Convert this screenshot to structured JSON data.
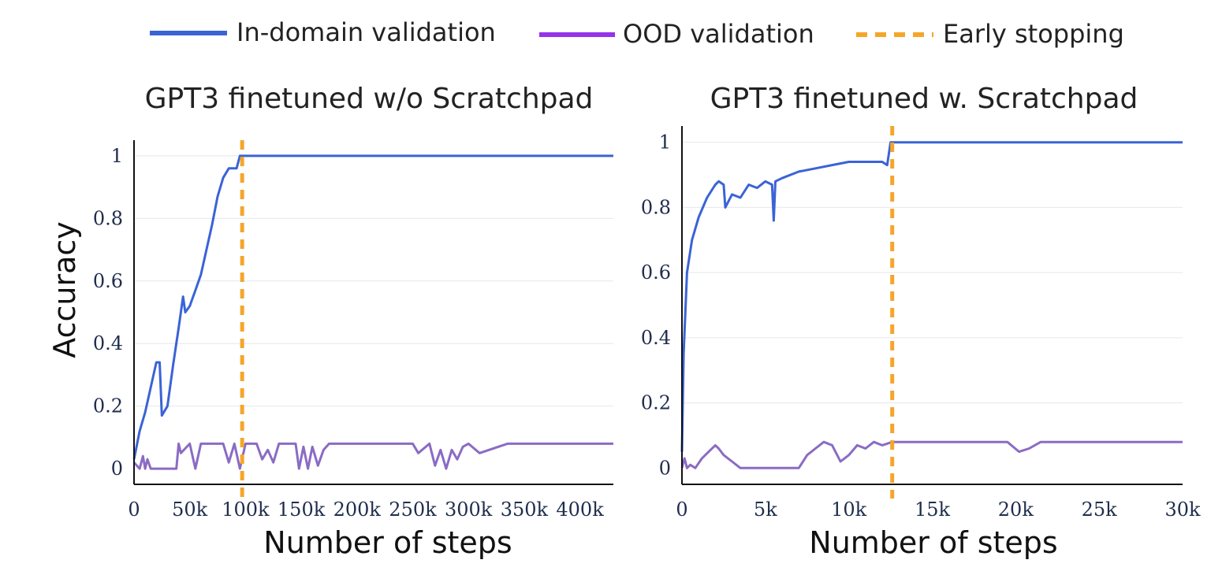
{
  "legend": [
    {
      "name": "In-domain validation",
      "color": "#3a63d6",
      "style": "solid"
    },
    {
      "name": "OOD validation",
      "color": "#9333ea",
      "style": "solid"
    },
    {
      "name": "Early stopping",
      "color": "#f4a62a",
      "style": "dashed"
    }
  ],
  "shared_ylabel": "Accuracy",
  "chart_data": [
    {
      "type": "line",
      "title": "GPT3 finetuned w/o Scratchpad",
      "xlabel": "Number of steps",
      "ylabel": "Accuracy",
      "xlim": [
        0,
        430000
      ],
      "ylim": [
        -0.05,
        1.05
      ],
      "xticks": [
        0,
        50000,
        100000,
        150000,
        200000,
        250000,
        300000,
        350000,
        400000
      ],
      "xtick_labels": [
        "0",
        "50k",
        "100k",
        "150k",
        "200k",
        "250k",
        "300k",
        "350k",
        "400k"
      ],
      "yticks": [
        0,
        0.2,
        0.4,
        0.6,
        0.8,
        1
      ],
      "ytick_labels": [
        "0",
        "0.2",
        "0.4",
        "0.6",
        "0.8",
        "1"
      ],
      "grid": true,
      "early_stopping_x": 97000,
      "series": [
        {
          "name": "In-domain validation",
          "color": "#3a63d6",
          "x": [
            0,
            5000,
            10000,
            15000,
            20000,
            23000,
            25000,
            30000,
            35000,
            40000,
            44000,
            46000,
            50000,
            55000,
            60000,
            65000,
            70000,
            75000,
            80000,
            85000,
            90000,
            92000,
            95000,
            97000,
            110000,
            200000,
            300000,
            430000
          ],
          "y": [
            0.03,
            0.12,
            0.18,
            0.26,
            0.34,
            0.34,
            0.17,
            0.2,
            0.33,
            0.45,
            0.55,
            0.5,
            0.52,
            0.57,
            0.62,
            0.7,
            0.78,
            0.87,
            0.93,
            0.96,
            0.96,
            0.96,
            1.0,
            1.0,
            1.0,
            1.0,
            1.0,
            1.0
          ]
        },
        {
          "name": "OOD validation",
          "color": "#8b6bc4",
          "x": [
            0,
            5000,
            8000,
            10000,
            12000,
            15000,
            20000,
            30000,
            38000,
            40000,
            42000,
            50000,
            55000,
            60000,
            80000,
            85000,
            90000,
            95000,
            100000,
            110000,
            115000,
            120000,
            125000,
            130000,
            145000,
            148000,
            152000,
            156000,
            160000,
            165000,
            170000,
            175000,
            250000,
            255000,
            265000,
            270000,
            275000,
            280000,
            285000,
            290000,
            295000,
            300000,
            310000,
            335000,
            430000
          ],
          "y": [
            0.02,
            0.0,
            0.04,
            0.0,
            0.03,
            0.0,
            0.0,
            0.0,
            0.0,
            0.08,
            0.05,
            0.08,
            0.0,
            0.08,
            0.08,
            0.02,
            0.08,
            0.0,
            0.08,
            0.08,
            0.03,
            0.06,
            0.02,
            0.08,
            0.08,
            0.0,
            0.07,
            0.0,
            0.07,
            0.01,
            0.06,
            0.08,
            0.08,
            0.05,
            0.08,
            0.01,
            0.06,
            0.0,
            0.06,
            0.03,
            0.07,
            0.08,
            0.05,
            0.08,
            0.08
          ]
        }
      ]
    },
    {
      "type": "line",
      "title": "GPT3 finetuned w. Scratchpad",
      "xlabel": "Number of steps",
      "ylabel": "",
      "xlim": [
        0,
        30000
      ],
      "ylim": [
        -0.05,
        1.05
      ],
      "xticks": [
        0,
        5000,
        10000,
        15000,
        20000,
        25000,
        30000
      ],
      "xtick_labels": [
        "0",
        "5k",
        "10k",
        "15k",
        "20k",
        "25k",
        "30k"
      ],
      "yticks": [
        0,
        0.2,
        0.4,
        0.6,
        0.8,
        1
      ],
      "ytick_labels": [
        "0",
        "0.2",
        "0.4",
        "0.6",
        "0.8",
        "1"
      ],
      "grid": true,
      "early_stopping_x": 12600,
      "series": [
        {
          "name": "In-domain validation",
          "color": "#3a63d6",
          "x": [
            0,
            100,
            300,
            600,
            1000,
            1500,
            2000,
            2200,
            2500,
            2600,
            3000,
            3500,
            4000,
            4500,
            5000,
            5400,
            5500,
            5600,
            6000,
            7000,
            8000,
            9000,
            10000,
            11000,
            12000,
            12300,
            12500,
            15000,
            20000,
            25000,
            30000
          ],
          "y": [
            0.05,
            0.35,
            0.6,
            0.7,
            0.77,
            0.83,
            0.87,
            0.88,
            0.87,
            0.8,
            0.84,
            0.83,
            0.87,
            0.86,
            0.88,
            0.87,
            0.76,
            0.88,
            0.89,
            0.91,
            0.92,
            0.93,
            0.94,
            0.94,
            0.94,
            0.93,
            1.0,
            1.0,
            1.0,
            1.0,
            1.0
          ]
        },
        {
          "name": "OOD validation",
          "color": "#8b6bc4",
          "x": [
            0,
            150,
            300,
            500,
            800,
            1200,
            1600,
            2000,
            2200,
            2500,
            3000,
            3500,
            5000,
            7000,
            7500,
            8000,
            8500,
            9000,
            9500,
            10000,
            10500,
            11000,
            11500,
            12000,
            12600,
            14000,
            17000,
            19500,
            20200,
            20800,
            21500,
            25000,
            30000
          ],
          "y": [
            0.0,
            0.03,
            0.0,
            0.01,
            0.0,
            0.03,
            0.05,
            0.07,
            0.06,
            0.04,
            0.02,
            0.0,
            0.0,
            0.0,
            0.04,
            0.06,
            0.08,
            0.07,
            0.02,
            0.04,
            0.07,
            0.06,
            0.08,
            0.07,
            0.08,
            0.08,
            0.08,
            0.08,
            0.05,
            0.06,
            0.08,
            0.08,
            0.08
          ]
        }
      ]
    }
  ]
}
